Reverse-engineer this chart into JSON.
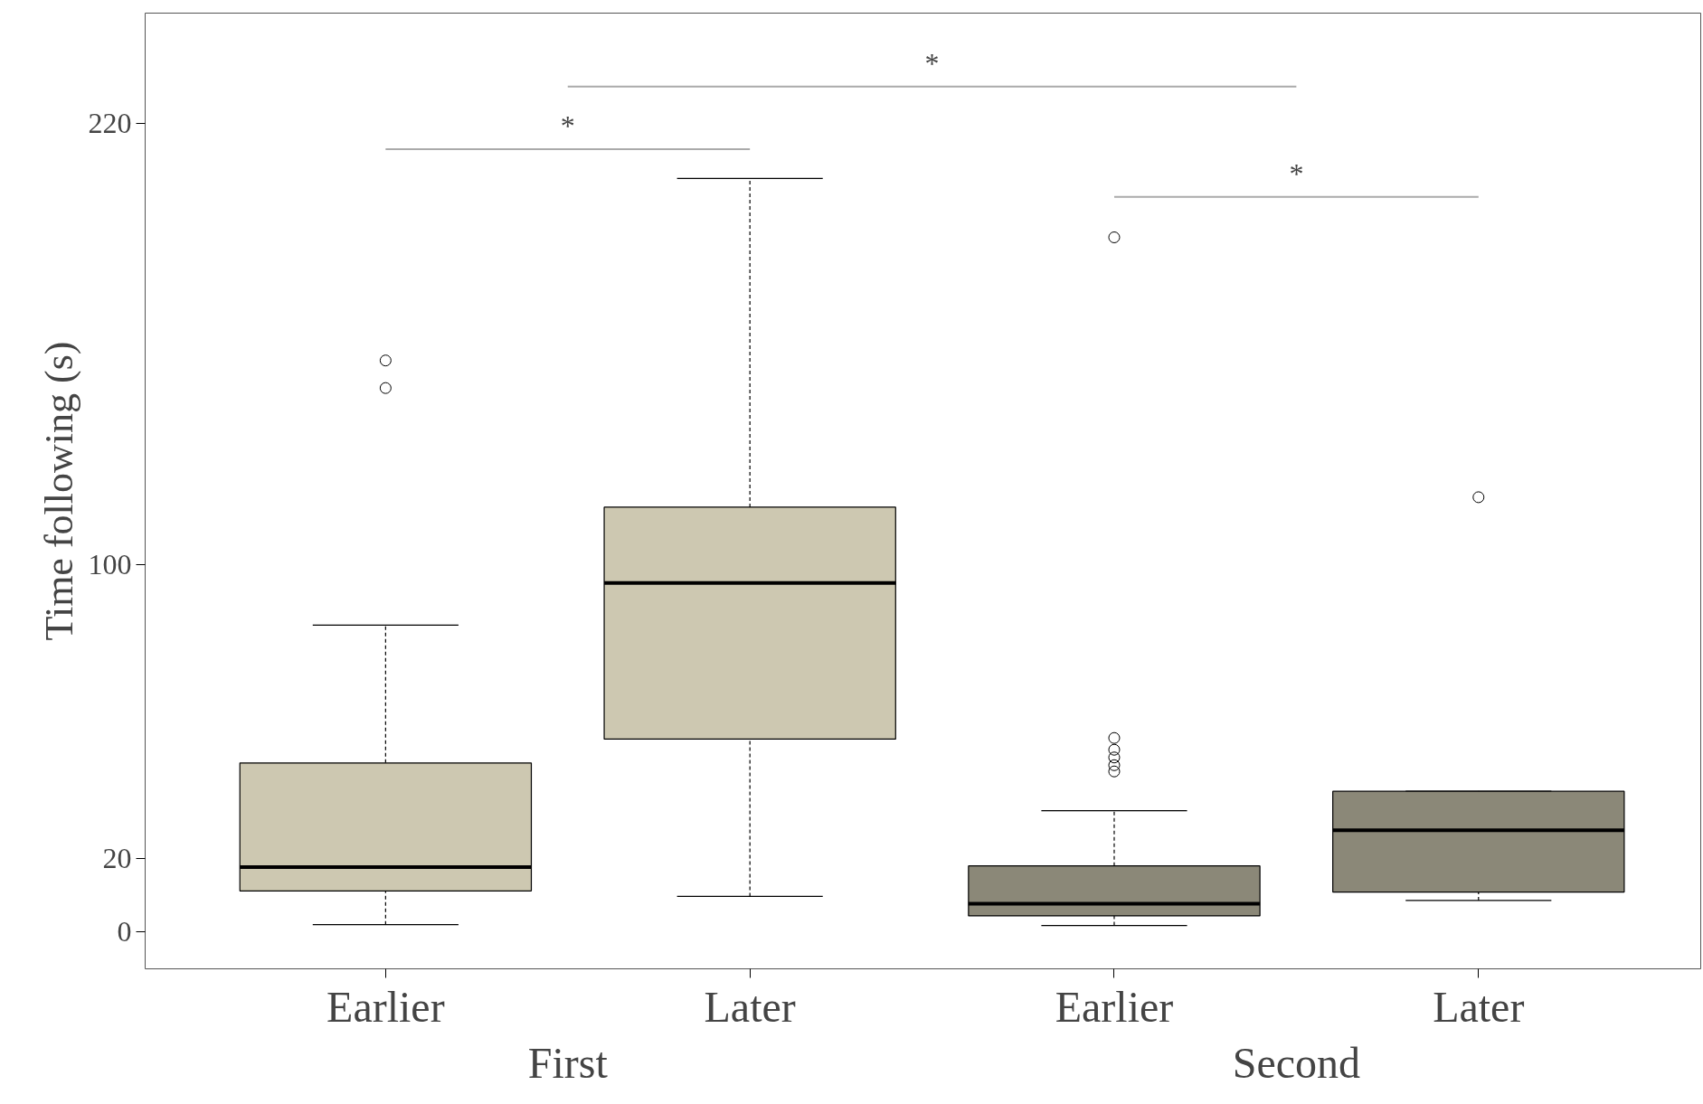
{
  "chart_data": {
    "type": "box",
    "ylabel": "Time following (s)",
    "categories": [
      "Earlier",
      "Later",
      "Earlier",
      "Later"
    ],
    "colors": [
      "#cdc8b1",
      "#cdc8b1",
      "#8b8878",
      "#8b8878"
    ],
    "boxes": [
      {
        "low": 2,
        "q1": 11.2,
        "median": 17.7,
        "q3": 46,
        "high": 83.5,
        "outliers": [
          155.5,
          148
        ]
      },
      {
        "low": 9.7,
        "q1": 52.5,
        "median": 95,
        "q3": 115.6,
        "high": 205
      },
      {
        "low": 1.8,
        "q1": 4.4,
        "median": 7.7,
        "q3": 18,
        "high": 33,
        "outliers": [
          189,
          52.8,
          49.6,
          47.5,
          45.4,
          43.7
        ]
      },
      {
        "low": 8.6,
        "q1": 10.9,
        "median": 27.7,
        "q3": 38.3,
        "high": 38.3,
        "outliers": [
          118.3
        ]
      }
    ],
    "ylim": [
      -10,
      250
    ],
    "yticks": [
      0,
      20,
      100,
      220
    ],
    "grid": false,
    "annotations": [
      "First",
      "Second",
      "*",
      "*",
      "*"
    ]
  }
}
